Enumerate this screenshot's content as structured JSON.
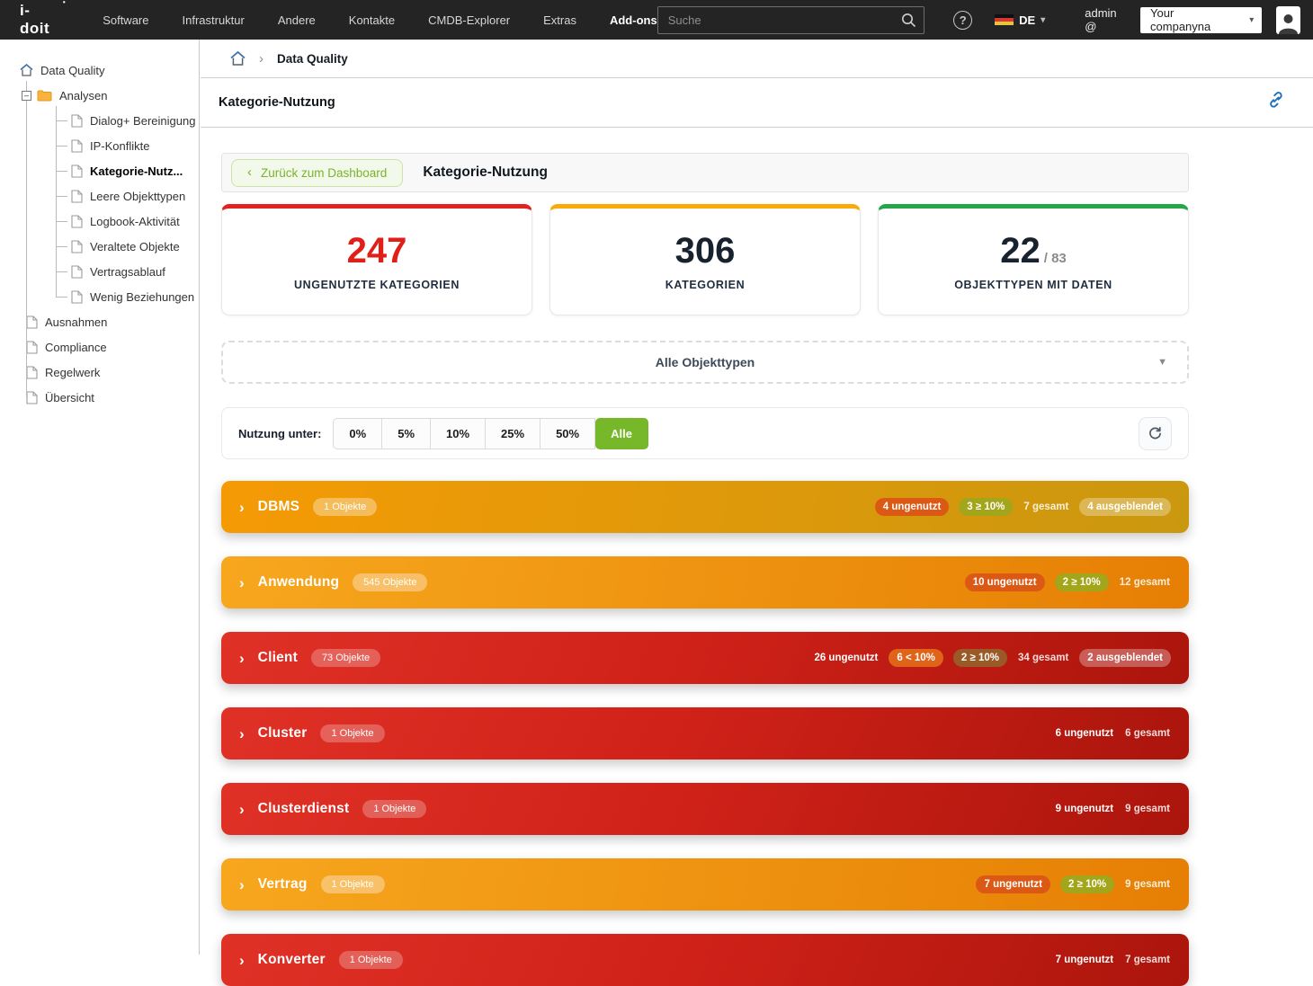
{
  "navbar": {
    "logo": "i-doit",
    "items": [
      "Software",
      "Infrastruktur",
      "Andere",
      "Kontakte",
      "CMDB-Explorer",
      "Extras",
      "Add-ons"
    ],
    "active_item": "Add-ons",
    "search_placeholder": "Suche",
    "language": "DE",
    "user": "admin @",
    "tenant": "Your companyna"
  },
  "sidebar": {
    "root": "Data Quality",
    "folder": "Analysen",
    "analyses": [
      "Dialog+ Bereinigung",
      "IP-Konflikte",
      "Kategorie-Nutz...",
      "Leere Objekttypen",
      "Logbook-Aktivität",
      "Veraltete Objekte",
      "Vertragsablauf",
      "Wenig Beziehungen"
    ],
    "active_analysis": "Kategorie-Nutz...",
    "items": [
      "Ausnahmen",
      "Compliance",
      "Regelwerk",
      "Übersicht"
    ]
  },
  "breadcrumb": {
    "current": "Data Quality"
  },
  "page": {
    "title": "Kategorie-Nutzung"
  },
  "toolbar": {
    "back_label": "Zurück zum Dashboard",
    "heading": "Kategorie-Nutzung"
  },
  "stats": [
    {
      "value": "247",
      "label": "UNGENUTZTE KATEGORIEN",
      "accent": "#e02220",
      "value_color": "#df1f18"
    },
    {
      "value": "306",
      "label": "KATEGORIEN",
      "accent": "#f9ab0e"
    },
    {
      "value": "22",
      "total": "/ 83",
      "label": "OBJEKTTYPEN MIT DATEN",
      "accent": "#25a64b"
    }
  ],
  "object_type_filter": {
    "value": "Alle Objekttypen"
  },
  "usage_filter": {
    "label": "Nutzung unter:",
    "options": [
      "0%",
      "5%",
      "10%",
      "25%",
      "50%",
      "Alle"
    ],
    "active": "Alle"
  },
  "accent_colors": {
    "green": "#76b82a",
    "red": "#d12219",
    "orange": "#ee8c0a",
    "gold": "#d99c0d"
  },
  "categories": [
    {
      "name": "DBMS",
      "objects": "1 Objekte",
      "severity": "gold",
      "badges": [
        {
          "text": "4 ungenutzt",
          "style": "unused"
        },
        {
          "text": "3 ≥ 10%",
          "style": "ge10"
        },
        {
          "text": "7 gesamt",
          "style": "total"
        },
        {
          "text": "4 ausgeblendet",
          "style": "hidden"
        }
      ]
    },
    {
      "name": "Anwendung",
      "objects": "545 Objekte",
      "severity": "orange",
      "badges": [
        {
          "text": "10 ungenutzt",
          "style": "unused"
        },
        {
          "text": "2 ≥ 10%",
          "style": "ge10"
        },
        {
          "text": "12 gesamt",
          "style": "total"
        }
      ]
    },
    {
      "name": "Client",
      "objects": "73 Objekte",
      "severity": "red",
      "badges": [
        {
          "text": "26 ungenutzt",
          "style": "plain"
        },
        {
          "text": "6 < 10%",
          "style": "lt10"
        },
        {
          "text": "2 ≥ 10%",
          "style": "ge10"
        },
        {
          "text": "34 gesamt",
          "style": "total"
        },
        {
          "text": "2 ausgeblendet",
          "style": "hidden"
        }
      ]
    },
    {
      "name": "Cluster",
      "objects": "1 Objekte",
      "severity": "red",
      "badges": [
        {
          "text": "6 ungenutzt",
          "style": "plain"
        },
        {
          "text": "6 gesamt",
          "style": "total"
        }
      ]
    },
    {
      "name": "Clusterdienst",
      "objects": "1 Objekte",
      "severity": "red",
      "badges": [
        {
          "text": "9 ungenutzt",
          "style": "plain"
        },
        {
          "text": "9 gesamt",
          "style": "total"
        }
      ]
    },
    {
      "name": "Vertrag",
      "objects": "1 Objekte",
      "severity": "orange",
      "badges": [
        {
          "text": "7 ungenutzt",
          "style": "unused"
        },
        {
          "text": "2 ≥ 10%",
          "style": "ge10"
        },
        {
          "text": "9 gesamt",
          "style": "total"
        }
      ]
    },
    {
      "name": "Konverter",
      "objects": "1 Objekte",
      "severity": "red",
      "badges": [
        {
          "text": "7 ungenutzt",
          "style": "plain"
        },
        {
          "text": "7 gesamt",
          "style": "total"
        }
      ]
    }
  ]
}
